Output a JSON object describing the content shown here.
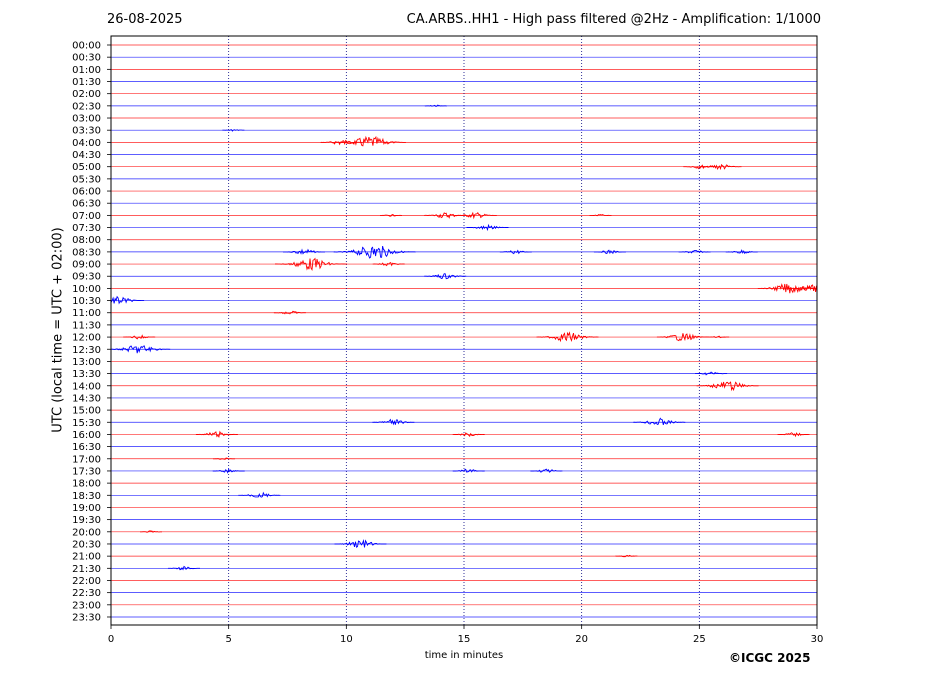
{
  "header": {
    "date": "26-08-2025",
    "title": "CA.ARBS..HH1 - High pass filtered @2Hz - Amplification: 1/1000"
  },
  "footer": {
    "copyright": "©ICGC 2025"
  },
  "chart_data": {
    "type": "line",
    "title": "CA.ARBS..HH1 - High pass filtered @2Hz - Amplification: 1/1000",
    "xlabel": "time in minutes",
    "ylabel": "UTC (local time = UTC + 02:00)",
    "xlim": [
      0,
      30
    ],
    "x_ticks": [
      "0",
      "5",
      "10",
      "15",
      "20",
      "25",
      "30"
    ],
    "y_ticks": [
      "00:00",
      "00:30",
      "01:00",
      "01:30",
      "02:00",
      "02:30",
      "03:00",
      "03:30",
      "04:00",
      "04:30",
      "05:00",
      "05:30",
      "06:00",
      "06:30",
      "07:00",
      "07:30",
      "08:00",
      "08:30",
      "09:00",
      "09:30",
      "10:00",
      "10:30",
      "11:00",
      "11:30",
      "12:00",
      "12:30",
      "13:00",
      "13:30",
      "14:00",
      "14:30",
      "15:00",
      "15:30",
      "16:00",
      "16:30",
      "17:00",
      "17:30",
      "18:00",
      "18:30",
      "19:00",
      "19:30",
      "20:00",
      "20:30",
      "21:00",
      "21:30",
      "22:00",
      "22:30",
      "23:00",
      "23:30"
    ],
    "vertical_gridlines_x": [
      5,
      10,
      15,
      20,
      25
    ],
    "trace_colors": [
      "#ff0000",
      "#0000ff"
    ],
    "events": [
      {
        "row": "02:30",
        "x": 13.8,
        "amp": 1
      },
      {
        "row": "03:30",
        "x": 5.2,
        "amp": 1
      },
      {
        "row": "04:00",
        "x": 9.8,
        "amp": 3
      },
      {
        "row": "04:00",
        "x": 11.0,
        "amp": 6
      },
      {
        "row": "05:00",
        "x": 25.0,
        "amp": 2
      },
      {
        "row": "05:00",
        "x": 25.9,
        "amp": 3
      },
      {
        "row": "07:00",
        "x": 14.2,
        "amp": 3
      },
      {
        "row": "07:00",
        "x": 15.5,
        "amp": 3
      },
      {
        "row": "07:00",
        "x": 11.9,
        "amp": 1
      },
      {
        "row": "07:00",
        "x": 20.8,
        "amp": 1
      },
      {
        "row": "07:30",
        "x": 16.0,
        "amp": 3
      },
      {
        "row": "08:30",
        "x": 8.2,
        "amp": 3
      },
      {
        "row": "08:30",
        "x": 11.2,
        "amp": 7
      },
      {
        "row": "08:30",
        "x": 17.2,
        "amp": 2
      },
      {
        "row": "08:30",
        "x": 21.2,
        "amp": 2
      },
      {
        "row": "08:30",
        "x": 24.8,
        "amp": 2
      },
      {
        "row": "08:30",
        "x": 26.8,
        "amp": 2
      },
      {
        "row": "09:00",
        "x": 8.5,
        "amp": 6
      },
      {
        "row": "09:00",
        "x": 11.8,
        "amp": 2
      },
      {
        "row": "09:30",
        "x": 14.2,
        "amp": 3
      },
      {
        "row": "10:00",
        "x": 28.8,
        "amp": 5
      },
      {
        "row": "10:00",
        "x": 29.9,
        "amp": 4
      },
      {
        "row": "10:30",
        "x": 0.3,
        "amp": 4
      },
      {
        "row": "11:00",
        "x": 7.6,
        "amp": 2
      },
      {
        "row": "12:00",
        "x": 1.2,
        "amp": 2
      },
      {
        "row": "12:00",
        "x": 19.4,
        "amp": 5
      },
      {
        "row": "12:00",
        "x": 24.3,
        "amp": 4
      },
      {
        "row": "12:00",
        "x": 25.8,
        "amp": 1
      },
      {
        "row": "12:30",
        "x": 1.2,
        "amp": 5
      },
      {
        "row": "13:30",
        "x": 25.5,
        "amp": 2
      },
      {
        "row": "14:00",
        "x": 26.2,
        "amp": 5
      },
      {
        "row": "15:30",
        "x": 12.0,
        "amp": 3
      },
      {
        "row": "15:30",
        "x": 23.3,
        "amp": 4
      },
      {
        "row": "16:00",
        "x": 4.5,
        "amp": 3
      },
      {
        "row": "16:00",
        "x": 15.2,
        "amp": 2
      },
      {
        "row": "16:00",
        "x": 29.0,
        "amp": 2
      },
      {
        "row": "17:00",
        "x": 4.8,
        "amp": 1
      },
      {
        "row": "17:30",
        "x": 5.0,
        "amp": 2
      },
      {
        "row": "17:30",
        "x": 15.2,
        "amp": 2
      },
      {
        "row": "17:30",
        "x": 18.5,
        "amp": 2
      },
      {
        "row": "18:30",
        "x": 6.3,
        "amp": 3
      },
      {
        "row": "20:00",
        "x": 1.7,
        "amp": 1
      },
      {
        "row": "20:30",
        "x": 10.6,
        "amp": 4
      },
      {
        "row": "21:00",
        "x": 21.9,
        "amp": 1
      },
      {
        "row": "21:30",
        "x": 3.1,
        "amp": 2
      }
    ]
  }
}
